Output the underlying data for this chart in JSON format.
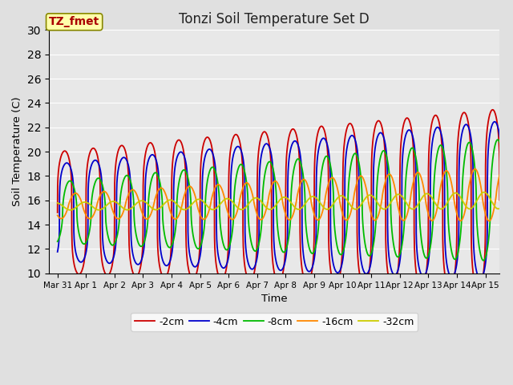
{
  "title": "Tonzi Soil Temperature Set D",
  "xlabel": "Time",
  "ylabel": "Soil Temperature (C)",
  "annotation": "TZ_fmet",
  "annotation_color": "#aa0000",
  "annotation_bg": "#ffffaa",
  "annotation_border": "#888800",
  "ylim": [
    10,
    30
  ],
  "xtick_labels": [
    "Mar 31",
    "Apr 1",
    "Apr 2",
    "Apr 3",
    "Apr 4",
    "Apr 5",
    "Apr 6",
    "Apr 7",
    "Apr 8",
    "Apr 9",
    "Apr 10",
    "Apr 11",
    "Apr 12",
    "Apr 13",
    "Apr 14",
    "Apr 15"
  ],
  "legend_labels": [
    "-2cm",
    "-4cm",
    "-8cm",
    "-16cm",
    "-32cm"
  ],
  "line_colors": [
    "#cc0000",
    "#0000cc",
    "#00bb00",
    "#ff8800",
    "#cccc00"
  ],
  "bg_color": "#e0e0e0",
  "plot_bg_color": "#e8e8e8",
  "grid_color": "#ffffff"
}
